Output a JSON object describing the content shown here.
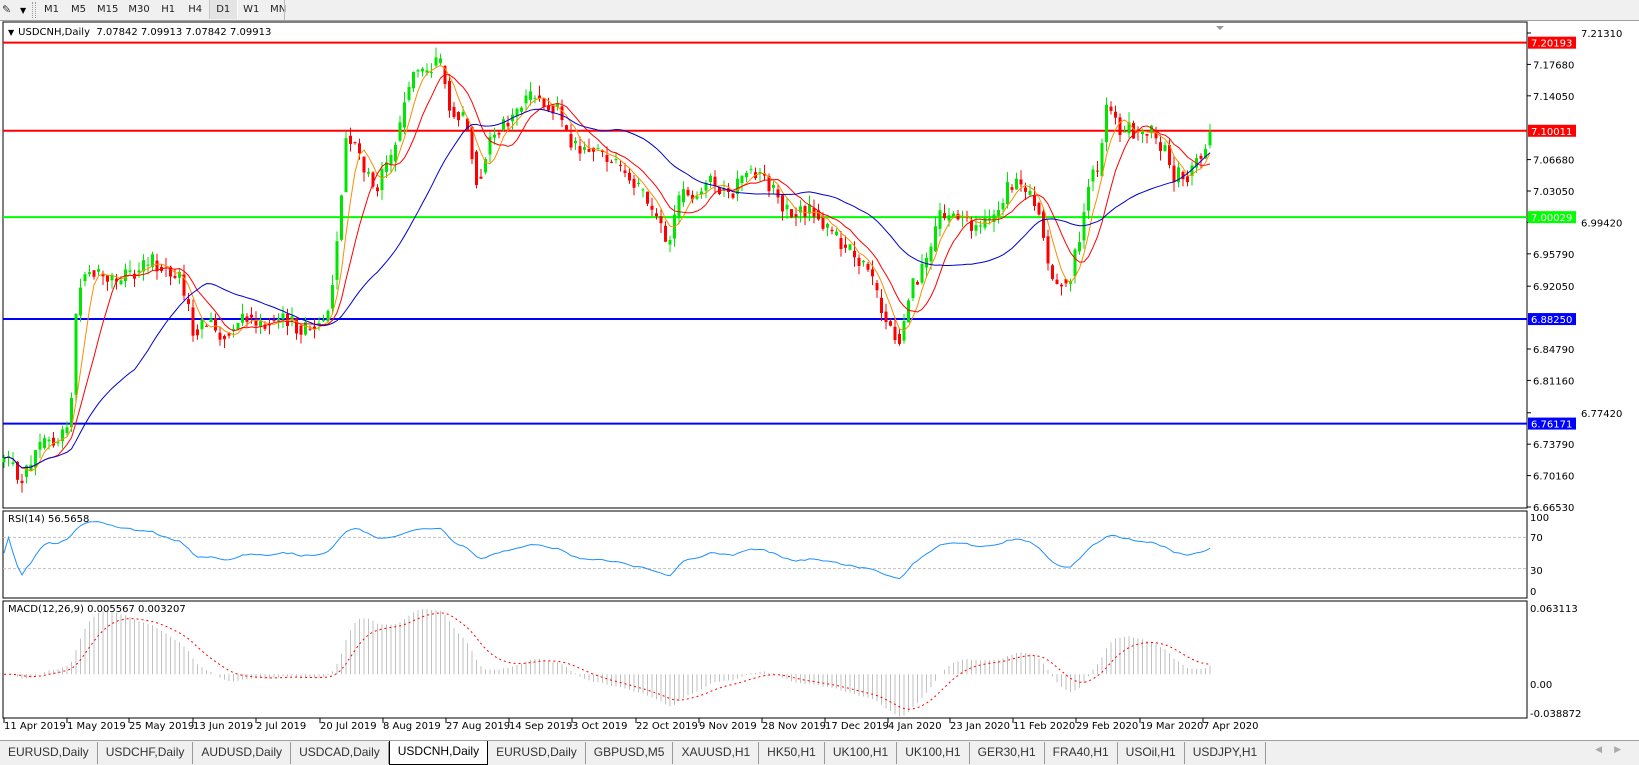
{
  "toolbar": {
    "tool_icon": "line-tools-icon",
    "timeframes": [
      "M1",
      "M5",
      "M15",
      "M30",
      "H1",
      "H4",
      "D1",
      "W1",
      "MN"
    ],
    "active_timeframe": "D1"
  },
  "chart": {
    "symbol_label": "USDCNH,Daily",
    "ohlc": "7.07842 7.09913 7.07842 7.09913",
    "price_ticks": [
      "7.21310",
      "7.17680",
      "7.14050",
      "7.06680",
      "7.03050",
      "6.99420",
      "6.95790",
      "6.92050",
      "6.84790",
      "6.81160",
      "6.77420",
      "6.73790",
      "6.70160",
      "6.66530"
    ],
    "price_range": [
      6.6653,
      7.2131
    ],
    "levels": [
      {
        "price": 7.20193,
        "label": "7.20193",
        "color": "#ff0000"
      },
      {
        "price": 7.10011,
        "label": "7.10011",
        "color": "#ff0000"
      },
      {
        "price": 7.00029,
        "label": "7.00029",
        "color": "#00ff00"
      },
      {
        "price": 6.8825,
        "label": "6.88250",
        "color": "#0000ff"
      },
      {
        "price": 6.76171,
        "label": "6.76171",
        "color": "#0000ff"
      }
    ],
    "date_ticks": [
      "11 Apr 2019",
      "1 May 2019",
      "25 May 2019",
      "13 Jun 2019",
      "2 Jul 2019",
      "20 Jul 2019",
      "8 Aug 2019",
      "27 Aug 2019",
      "14 Sep 2019",
      "3 Oct 2019",
      "22 Oct 2019",
      "9 Nov 2019",
      "28 Nov 2019",
      "17 Dec 2019",
      "4 Jan 2020",
      "23 Jan 2020",
      "11 Feb 2020",
      "29 Feb 2020",
      "19 Mar 2020",
      "7 Apr 2020"
    ],
    "colors": {
      "bull": "#00e600",
      "bear": "#ff0000",
      "ma_fast": "#ff8c00",
      "ma_mid": "#ff0000",
      "ma_slow": "#0000cd"
    },
    "approx_closes": [
      [
        "2019-04-11",
        6.72
      ],
      [
        "2019-04-16",
        6.7
      ],
      [
        "2019-04-19",
        6.71
      ],
      [
        "2019-04-23",
        6.74
      ],
      [
        "2019-04-28",
        6.74
      ],
      [
        "2019-05-02",
        6.76
      ],
      [
        "2019-05-05",
        6.92
      ],
      [
        "2019-05-10",
        6.94
      ],
      [
        "2019-05-16",
        6.93
      ],
      [
        "2019-05-25",
        6.93
      ],
      [
        "2019-06-01",
        6.95
      ],
      [
        "2019-06-09",
        6.93
      ],
      [
        "2019-06-13",
        6.87
      ],
      [
        "2019-06-18",
        6.88
      ],
      [
        "2019-06-22",
        6.86
      ],
      [
        "2019-06-27",
        6.89
      ],
      [
        "2019-07-03",
        6.88
      ],
      [
        "2019-07-09",
        6.88
      ],
      [
        "2019-07-18",
        6.87
      ],
      [
        "2019-07-23",
        6.9
      ],
      [
        "2019-07-26",
        7.0
      ],
      [
        "2019-07-28",
        7.1
      ],
      [
        "2019-08-01",
        7.07
      ],
      [
        "2019-08-05",
        7.03
      ],
      [
        "2019-08-10",
        7.06
      ],
      [
        "2019-08-13",
        7.1
      ],
      [
        "2019-08-16",
        7.16
      ],
      [
        "2019-08-20",
        7.17
      ],
      [
        "2019-08-25",
        7.18
      ],
      [
        "2019-08-28",
        7.13
      ],
      [
        "2019-09-02",
        7.11
      ],
      [
        "2019-09-05",
        7.04
      ],
      [
        "2019-09-09",
        7.09
      ],
      [
        "2019-09-14",
        7.11
      ],
      [
        "2019-09-20",
        7.14
      ],
      [
        "2019-09-24",
        7.14
      ],
      [
        "2019-09-29",
        7.12
      ],
      [
        "2019-10-03",
        7.08
      ],
      [
        "2019-10-08",
        7.08
      ],
      [
        "2019-10-14",
        7.07
      ],
      [
        "2019-10-20",
        7.05
      ],
      [
        "2019-10-26",
        7.01
      ],
      [
        "2019-10-31",
        6.97
      ],
      [
        "2019-11-04",
        7.03
      ],
      [
        "2019-11-08",
        7.03
      ],
      [
        "2019-11-13",
        7.04
      ],
      [
        "2019-11-19",
        7.03
      ],
      [
        "2019-11-24",
        7.06
      ],
      [
        "2019-11-28",
        7.05
      ],
      [
        "2019-12-03",
        7.02
      ],
      [
        "2019-12-07",
        7.0
      ],
      [
        "2019-12-13",
        7.01
      ],
      [
        "2019-12-19",
        6.98
      ],
      [
        "2019-12-25",
        6.96
      ],
      [
        "2019-12-30",
        6.93
      ],
      [
        "2020-01-04",
        6.87
      ],
      [
        "2020-01-08",
        6.86
      ],
      [
        "2020-01-11",
        6.92
      ],
      [
        "2020-01-16",
        6.95
      ],
      [
        "2020-01-20",
        7.0
      ],
      [
        "2020-01-25",
        7.0
      ],
      [
        "2020-01-29",
        6.99
      ],
      [
        "2020-02-03",
        6.99
      ],
      [
        "2020-02-09",
        7.03
      ],
      [
        "2020-02-13",
        7.04
      ],
      [
        "2020-02-18",
        7.01
      ],
      [
        "2020-02-22",
        6.93
      ],
      [
        "2020-02-27",
        6.93
      ],
      [
        "2020-03-01",
        6.97
      ],
      [
        "2020-03-04",
        7.05
      ],
      [
        "2020-03-07",
        7.05
      ],
      [
        "2020-03-09",
        7.13
      ],
      [
        "2020-03-13",
        7.1
      ],
      [
        "2020-03-17",
        7.1
      ],
      [
        "2020-03-22",
        7.1
      ],
      [
        "2020-03-26",
        7.08
      ],
      [
        "2020-03-29",
        7.05
      ],
      [
        "2020-04-03",
        7.05
      ],
      [
        "2020-04-06",
        7.07
      ],
      [
        "2020-04-09",
        7.09913
      ]
    ]
  },
  "rsi": {
    "label": "RSI(14) 56.5658",
    "ticks": [
      "100",
      "70",
      "30",
      "0"
    ],
    "color": "#1e90ff"
  },
  "macd": {
    "label": "MACD(12,26,9) 0.005567 0.003207",
    "ticks": [
      "0.063113",
      "0.00",
      "-0.038872"
    ],
    "range": [
      -0.038872,
      0.063113
    ],
    "hist_color": "#c0c0c0",
    "signal_color": "#ff0000"
  },
  "tabs": [
    "EURUSD,Daily",
    "USDCHF,Daily",
    "AUDUSD,Daily",
    "USDCAD,Daily",
    "USDCNH,Daily",
    "EURUSD,Daily",
    "GBPUSD,M5",
    "XAUUSD,H1",
    "HK50,H1",
    "UK100,H1",
    "UK100,H1",
    "GER30,H1",
    "FRA40,H1",
    "USOil,H1",
    "USDJPY,H1"
  ],
  "active_tab": 4
}
